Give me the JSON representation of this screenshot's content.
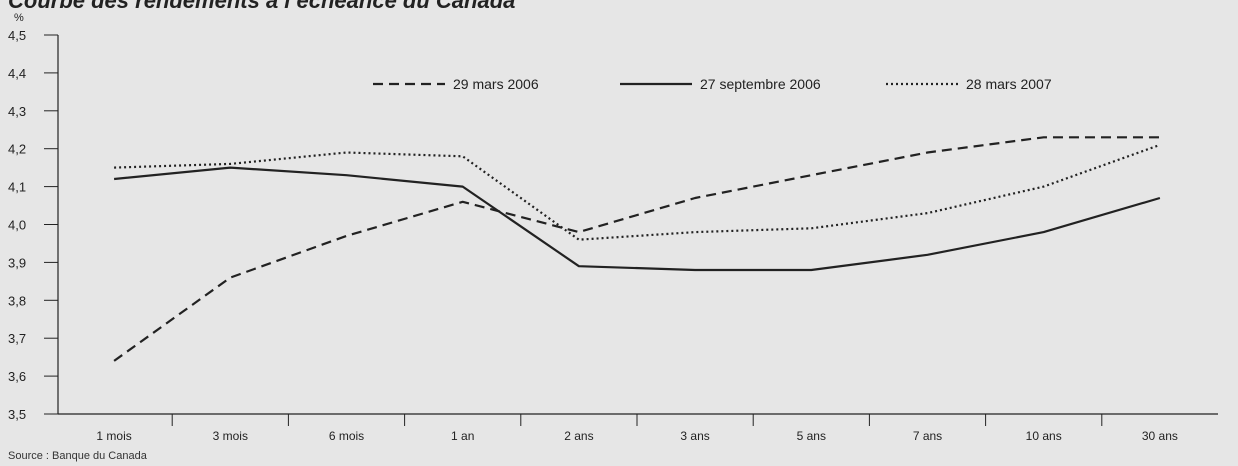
{
  "chart_data": {
    "type": "line",
    "title": "Courbe des rendements à l’échéance du Canada",
    "ylabel": "%",
    "categories": [
      "1 mois",
      "3 mois",
      "6 mois",
      "1 an",
      "2 ans",
      "3 ans",
      "5 ans",
      "7 ans",
      "10 ans",
      "30 ans"
    ],
    "ylim": [
      3.5,
      4.5
    ],
    "yticks": [
      "3,5",
      "3,6",
      "3,7",
      "3,8",
      "3,9",
      "4,0",
      "4,1",
      "4,2",
      "4,3",
      "4,4",
      "4,5"
    ],
    "legend_position": "top-center",
    "grid": false,
    "series": [
      {
        "name": "29 mars 2006",
        "style": "dashed",
        "color": "#222222",
        "values": [
          3.64,
          3.86,
          3.97,
          4.06,
          3.98,
          4.07,
          4.13,
          4.19,
          4.23,
          4.23
        ]
      },
      {
        "name": "27 septembre 2006",
        "style": "solid",
        "color": "#222222",
        "values": [
          4.12,
          4.15,
          4.13,
          4.1,
          3.89,
          3.88,
          3.88,
          3.92,
          3.98,
          4.07
        ]
      },
      {
        "name": "28 mars 2007",
        "style": "dotted",
        "color": "#222222",
        "values": [
          4.15,
          4.16,
          4.19,
          4.18,
          3.96,
          3.98,
          3.99,
          4.03,
          4.1,
          4.21
        ]
      }
    ]
  },
  "source": "Source : Banque du Canada"
}
